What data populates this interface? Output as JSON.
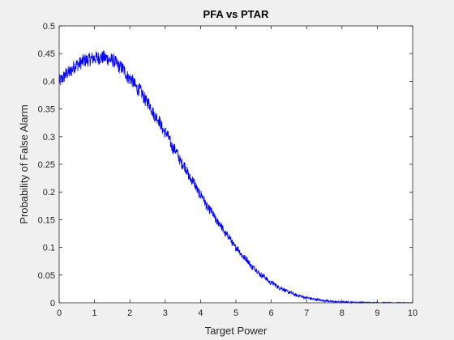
{
  "chart_data": {
    "type": "line",
    "title": "PFA vs PTAR",
    "xlabel": "Target Power",
    "ylabel": "Probability of False Alarm",
    "xlim": [
      0,
      10
    ],
    "ylim": [
      0,
      0.5
    ],
    "xticks": [
      0,
      1,
      2,
      3,
      4,
      5,
      6,
      7,
      8,
      9,
      10
    ],
    "yticks": [
      0,
      0.05,
      0.1,
      0.15,
      0.2,
      0.25,
      0.3,
      0.35,
      0.4,
      0.45,
      0.5
    ],
    "xtick_labels": [
      "0",
      "1",
      "2",
      "3",
      "4",
      "5",
      "6",
      "7",
      "8",
      "9",
      "10"
    ],
    "ytick_labels": [
      "0",
      "0.05",
      "0.1",
      "0.15",
      "0.2",
      "0.25",
      "0.3",
      "0.35",
      "0.4",
      "0.45",
      "0.5"
    ],
    "grid": false,
    "series": [
      {
        "color": "#0000ff",
        "noisy": true,
        "x": [
          0,
          0.25,
          0.5,
          0.75,
          1.0,
          1.25,
          1.5,
          1.75,
          2.0,
          2.25,
          2.5,
          2.75,
          3.0,
          3.25,
          3.5,
          3.75,
          4.0,
          4.25,
          4.5,
          4.75,
          5.0,
          5.25,
          5.5,
          5.75,
          6.0,
          6.25,
          6.5,
          6.75,
          7.0,
          7.25,
          7.5,
          7.75,
          8.0,
          8.5,
          9.0,
          9.5,
          10.0
        ],
        "y": [
          0.4,
          0.415,
          0.43,
          0.438,
          0.442,
          0.443,
          0.438,
          0.425,
          0.405,
          0.385,
          0.362,
          0.335,
          0.308,
          0.278,
          0.25,
          0.222,
          0.195,
          0.168,
          0.145,
          0.122,
          0.1,
          0.081,
          0.063,
          0.049,
          0.036,
          0.027,
          0.019,
          0.013,
          0.009,
          0.006,
          0.004,
          0.002,
          0.0015,
          0.0006,
          0.0002,
          5e-05,
          0.0
        ]
      }
    ]
  }
}
